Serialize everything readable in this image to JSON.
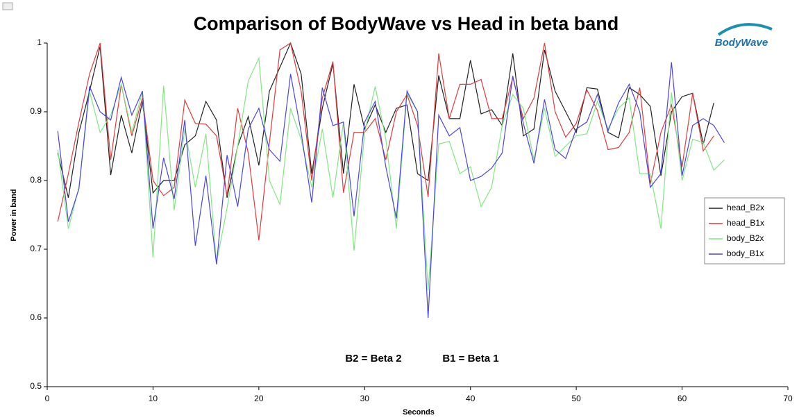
{
  "chart_data": {
    "type": "line",
    "title": "Comparison of BodyWave vs Head in beta band",
    "logo": "BodyWave",
    "annotations": [
      "B2 = Beta 2",
      "B1 = Beta 1"
    ],
    "xlabel": "Seconds",
    "ylabel": "Power in band",
    "xlim": [
      0,
      70
    ],
    "xticks": [
      0,
      10,
      20,
      30,
      40,
      50,
      60,
      70
    ],
    "ylim": [
      0.5,
      1
    ],
    "yticks": [
      0.5,
      0.6,
      0.7,
      0.8,
      0.9,
      1
    ],
    "legend": "right",
    "x": [
      1,
      2,
      3,
      4,
      5,
      6,
      7,
      8,
      9,
      10,
      11,
      12,
      13,
      14,
      15,
      16,
      17,
      18,
      19,
      20,
      21,
      22,
      23,
      24,
      25,
      26,
      27,
      28,
      29,
      30,
      31,
      32,
      33,
      34,
      35,
      36,
      37,
      38,
      39,
      40,
      41,
      42,
      43,
      44,
      45,
      46,
      47,
      48,
      49,
      50,
      51,
      52,
      53,
      54,
      55,
      56,
      57,
      58,
      59,
      60,
      61,
      62,
      63,
      64
    ],
    "series": [
      {
        "name": "head_B2x",
        "color": "#202020",
        "values": [
          0.84,
          0.775,
          0.87,
          0.93,
          0.995,
          0.808,
          0.895,
          0.84,
          0.915,
          0.782,
          0.8,
          0.8,
          0.852,
          0.865,
          0.915,
          0.888,
          0.775,
          0.85,
          0.893,
          0.822,
          0.93,
          0.965,
          1.0,
          0.955,
          0.81,
          0.905,
          0.97,
          0.81,
          0.94,
          0.875,
          0.91,
          0.87,
          0.905,
          0.91,
          0.81,
          0.8,
          0.953,
          0.89,
          0.89,
          0.975,
          0.897,
          0.903,
          0.88,
          0.985,
          0.865,
          0.875,
          0.99,
          0.93,
          0.9,
          0.87,
          0.935,
          0.933,
          0.87,
          0.862,
          0.935,
          0.925,
          0.908,
          0.807,
          0.9,
          0.922,
          0.927,
          0.853,
          0.913,
          null
        ]
      },
      {
        "name": "head_B1x",
        "color": "#e03a3a",
        "values": [
          0.74,
          0.81,
          0.885,
          0.955,
          1.0,
          0.83,
          0.94,
          0.865,
          0.92,
          0.8,
          0.778,
          0.79,
          0.917,
          0.883,
          0.882,
          0.865,
          0.778,
          0.905,
          0.84,
          0.713,
          0.855,
          0.99,
          1.0,
          0.93,
          0.8,
          0.92,
          0.973,
          0.782,
          0.87,
          0.87,
          0.89,
          0.83,
          0.9,
          0.925,
          0.88,
          0.776,
          0.985,
          0.89,
          0.94,
          0.94,
          0.947,
          0.89,
          0.89,
          0.95,
          0.89,
          0.92,
          1.0,
          0.9,
          0.863,
          0.883,
          0.932,
          0.902,
          0.845,
          0.848,
          0.87,
          0.935,
          0.795,
          0.87,
          0.91,
          0.82,
          0.927,
          0.843,
          0.865,
          null
        ]
      },
      {
        "name": "body_B2x",
        "color": "#80e880",
        "values": [
          0.845,
          0.73,
          0.79,
          0.93,
          0.87,
          0.895,
          0.94,
          0.87,
          0.93,
          0.688,
          0.938,
          0.757,
          0.875,
          0.79,
          0.868,
          0.68,
          0.76,
          0.85,
          0.945,
          0.978,
          0.8,
          0.765,
          0.905,
          0.86,
          0.79,
          0.875,
          0.775,
          0.885,
          0.698,
          0.87,
          0.937,
          0.86,
          0.73,
          0.927,
          0.9,
          0.64,
          0.853,
          0.857,
          0.81,
          0.82,
          0.762,
          0.79,
          0.88,
          0.925,
          0.905,
          0.83,
          0.905,
          0.835,
          0.85,
          0.865,
          0.868,
          0.915,
          0.875,
          0.905,
          0.92,
          0.81,
          0.81,
          0.73,
          0.928,
          0.8,
          0.86,
          0.855,
          0.815,
          0.83
        ]
      },
      {
        "name": "body_B1x",
        "color": "#4a44e0",
        "values": [
          0.872,
          0.74,
          0.788,
          0.937,
          0.9,
          0.888,
          0.95,
          0.895,
          0.93,
          0.73,
          0.833,
          0.773,
          0.888,
          0.705,
          0.807,
          0.678,
          0.837,
          0.762,
          0.875,
          0.905,
          0.845,
          0.828,
          0.955,
          0.87,
          0.768,
          0.935,
          0.88,
          0.885,
          0.748,
          0.885,
          0.915,
          0.82,
          0.745,
          0.93,
          0.9,
          0.6,
          0.895,
          0.865,
          0.877,
          0.8,
          0.806,
          0.818,
          0.84,
          0.952,
          0.883,
          0.825,
          0.918,
          0.845,
          0.832,
          0.875,
          0.885,
          0.925,
          0.872,
          0.913,
          0.94,
          0.9,
          0.79,
          0.81,
          0.972,
          0.807,
          0.88,
          0.89,
          0.88,
          0.855
        ]
      }
    ]
  }
}
